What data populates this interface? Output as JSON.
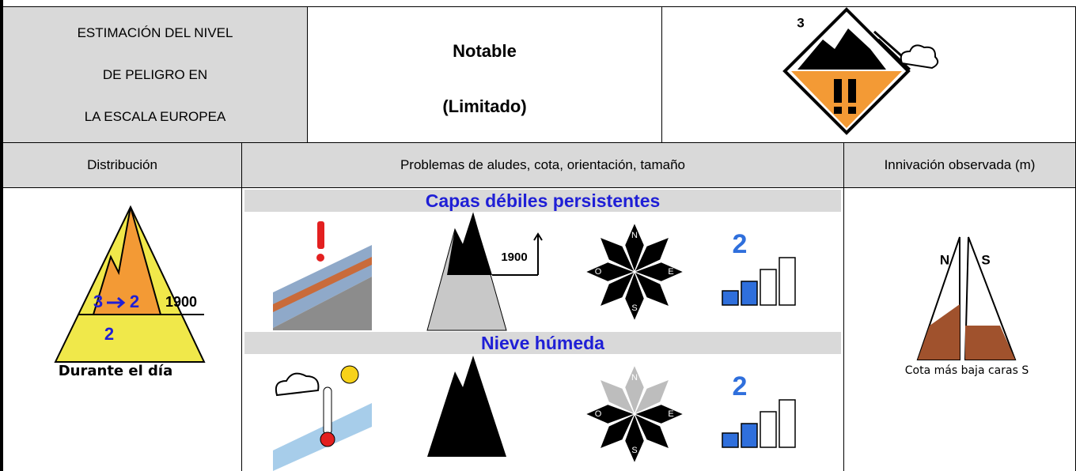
{
  "header": {
    "scale_label": [
      "ESTIMACIÓN DEL NIVEL",
      "DE PELIGRO EN",
      "LA ESCALA EUROPEA"
    ],
    "level_name": "Notable",
    "level_note": "(Limitado)",
    "icon_level": "3"
  },
  "columns": [
    "Distribución",
    "Problemas de aludes, cota, orientación, tamaño",
    "Innivación observada (m)"
  ],
  "distribution": {
    "from": "3",
    "to": "2",
    "altitude": "1900",
    "below": "2",
    "timing": "Durante el día"
  },
  "problems": [
    {
      "name": "Capas débiles persistentes",
      "altitude": "1900",
      "compass": [
        "N",
        "E",
        "S",
        "O"
      ],
      "size": "2"
    },
    {
      "name": "Nieve húmeda",
      "compass": [
        "N",
        "E",
        "S",
        "O"
      ],
      "size": "2"
    }
  ],
  "snow": {
    "north": "N",
    "south": "S",
    "caption": "Cota más baja caras S"
  }
}
